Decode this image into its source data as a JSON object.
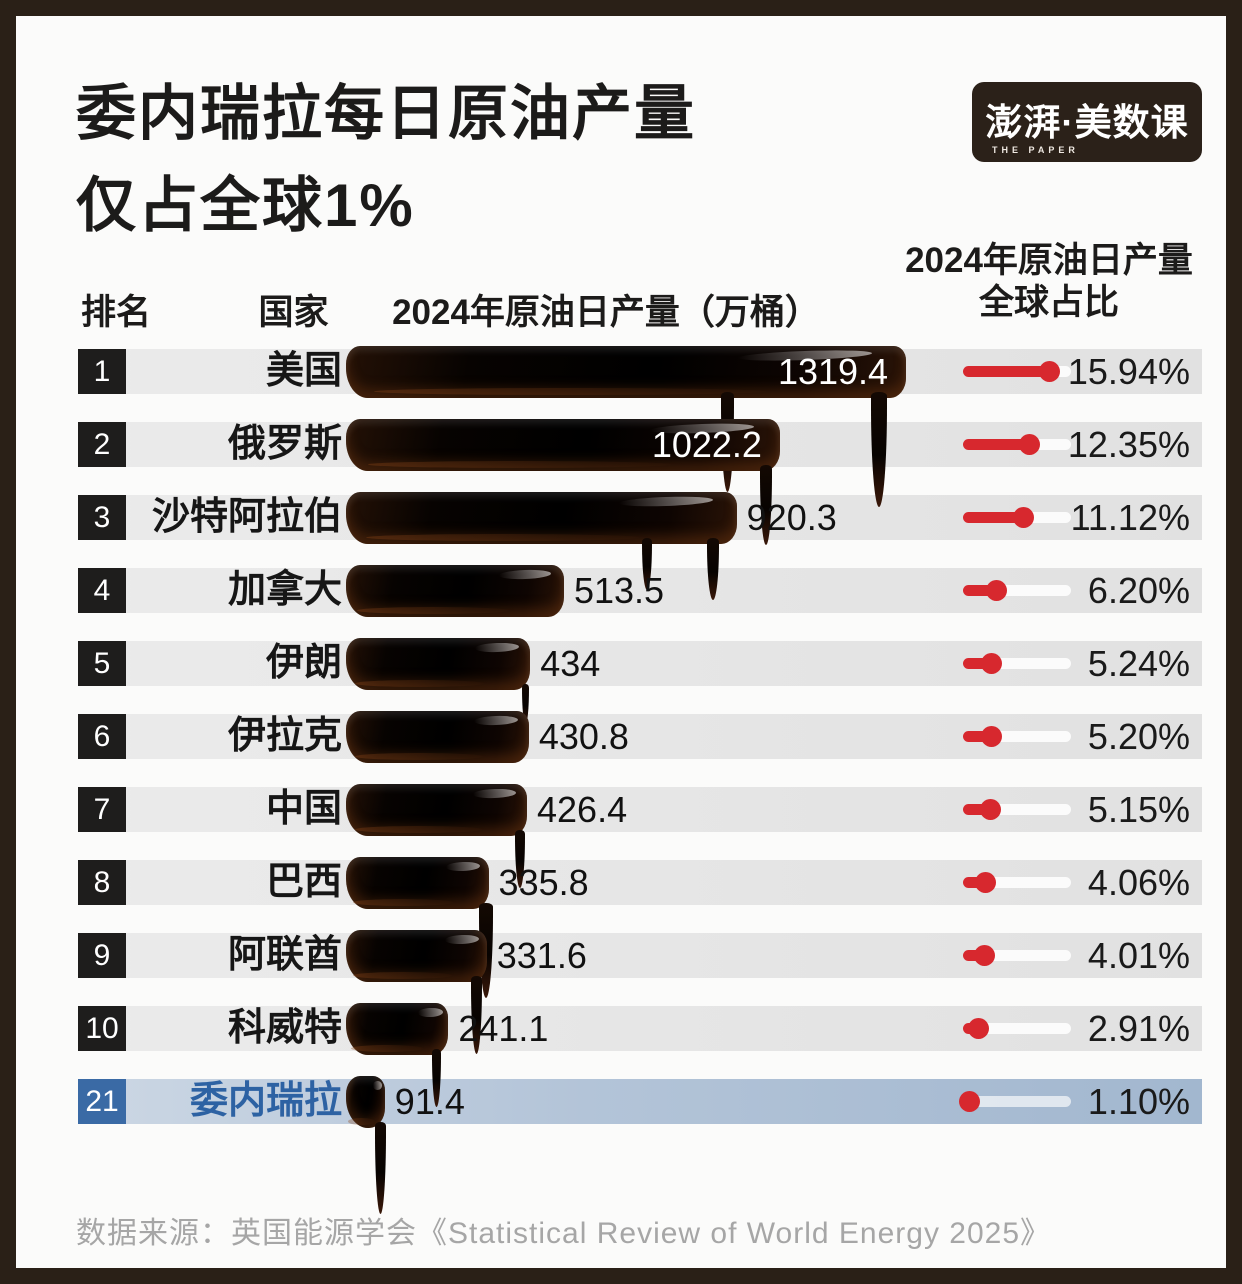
{
  "title": {
    "line1": "委内瑞拉每日原油产量",
    "line2": "仅占全球1%"
  },
  "logo": {
    "main": "澎湃·美数课",
    "sub": "THE PAPER"
  },
  "table": {
    "col_rank": "排名",
    "col_country": "国家",
    "col_production": "2024年原油日产量（万桶）",
    "col_share": "2024年原油日产量\n全球占比"
  },
  "source": "数据来源：英国能源学会《Statistical Review of World Energy 2025》",
  "colors": {
    "accent_red": "#d7282e",
    "frame_brown": "#2a2017",
    "highlight_blue": "#3a6aa5",
    "highlight_text": "#2d62a3",
    "row_gray": "#e6e6e6",
    "oil_black": "#0a0502"
  },
  "chart_data": {
    "type": "bar",
    "title": "委内瑞拉每日原油产量仅占全球1%",
    "xlabel": "2024年原油日产量（万桶）",
    "unit": "万桶",
    "bar_axis_max": 1400,
    "share_axis_max": 20,
    "legend_position": "none",
    "grid": false,
    "rows": [
      {
        "rank": "1",
        "country": "美国",
        "value": 1319.4,
        "production": "1319.4",
        "share_value": 15.94,
        "share": "15.94%",
        "highlight": false
      },
      {
        "rank": "2",
        "country": "俄罗斯",
        "value": 1022.2,
        "production": "1022.2",
        "share_value": 12.35,
        "share": "12.35%",
        "highlight": false
      },
      {
        "rank": "3",
        "country": "沙特阿拉伯",
        "value": 920.3,
        "production": "920.3",
        "share_value": 11.12,
        "share": "11.12%",
        "highlight": false
      },
      {
        "rank": "4",
        "country": "加拿大",
        "value": 513.5,
        "production": "513.5",
        "share_value": 6.2,
        "share": "6.20%",
        "highlight": false
      },
      {
        "rank": "5",
        "country": "伊朗",
        "value": 434,
        "production": "434",
        "share_value": 5.24,
        "share": "5.24%",
        "highlight": false
      },
      {
        "rank": "6",
        "country": "伊拉克",
        "value": 430.8,
        "production": "430.8",
        "share_value": 5.2,
        "share": "5.20%",
        "highlight": false
      },
      {
        "rank": "7",
        "country": "中国",
        "value": 426.4,
        "production": "426.4",
        "share_value": 5.15,
        "share": "5.15%",
        "highlight": false
      },
      {
        "rank": "8",
        "country": "巴西",
        "value": 335.8,
        "production": "335.8",
        "share_value": 4.06,
        "share": "4.06%",
        "highlight": false
      },
      {
        "rank": "9",
        "country": "阿联酋",
        "value": 331.6,
        "production": "331.6",
        "share_value": 4.01,
        "share": "4.01%",
        "highlight": false
      },
      {
        "rank": "10",
        "country": "科威特",
        "value": 241.1,
        "production": "241.1",
        "share_value": 2.91,
        "share": "2.91%",
        "highlight": false
      },
      {
        "rank": "21",
        "country": "委内瑞拉",
        "value": 91.4,
        "production": "91.4",
        "share_value": 1.1,
        "share": "1.10%",
        "highlight": true
      }
    ]
  }
}
